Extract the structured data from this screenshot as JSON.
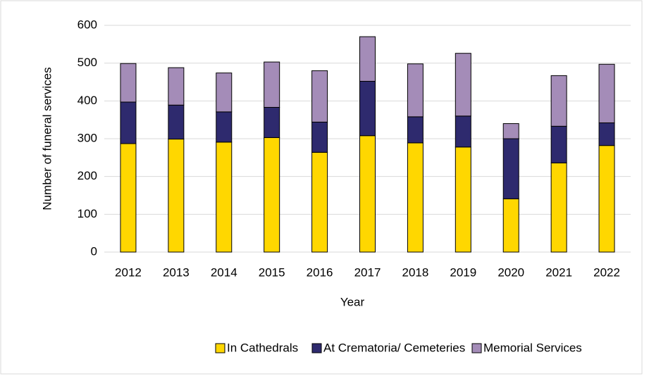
{
  "chart_data": {
    "type": "stacked_bar",
    "x_label": "Year",
    "y_label": "Number of funeral services",
    "categories": [
      "2012",
      "2013",
      "2014",
      "2015",
      "2016",
      "2017",
      "2018",
      "2019",
      "2020",
      "2021",
      "2022"
    ],
    "series": [
      {
        "name": "In Cathedrals",
        "color": "#ffd700",
        "values": [
          287,
          299,
          291,
          303,
          264,
          308,
          289,
          278,
          141,
          236,
          282
        ]
      },
      {
        "name": "At Crematoria/ Cemeteries",
        "color": "#2e2a6e",
        "values": [
          110,
          90,
          80,
          80,
          80,
          144,
          69,
          82,
          159,
          97,
          60
        ]
      },
      {
        "name": "Memorial Services",
        "color": "#a48cb8",
        "values": [
          102,
          99,
          103,
          120,
          136,
          118,
          140,
          166,
          40,
          134,
          155
        ]
      }
    ],
    "ylim": [
      0,
      600
    ],
    "yticks": [
      0,
      100,
      200,
      300,
      400,
      500,
      600
    ],
    "grid": true,
    "legend": "bottom"
  }
}
